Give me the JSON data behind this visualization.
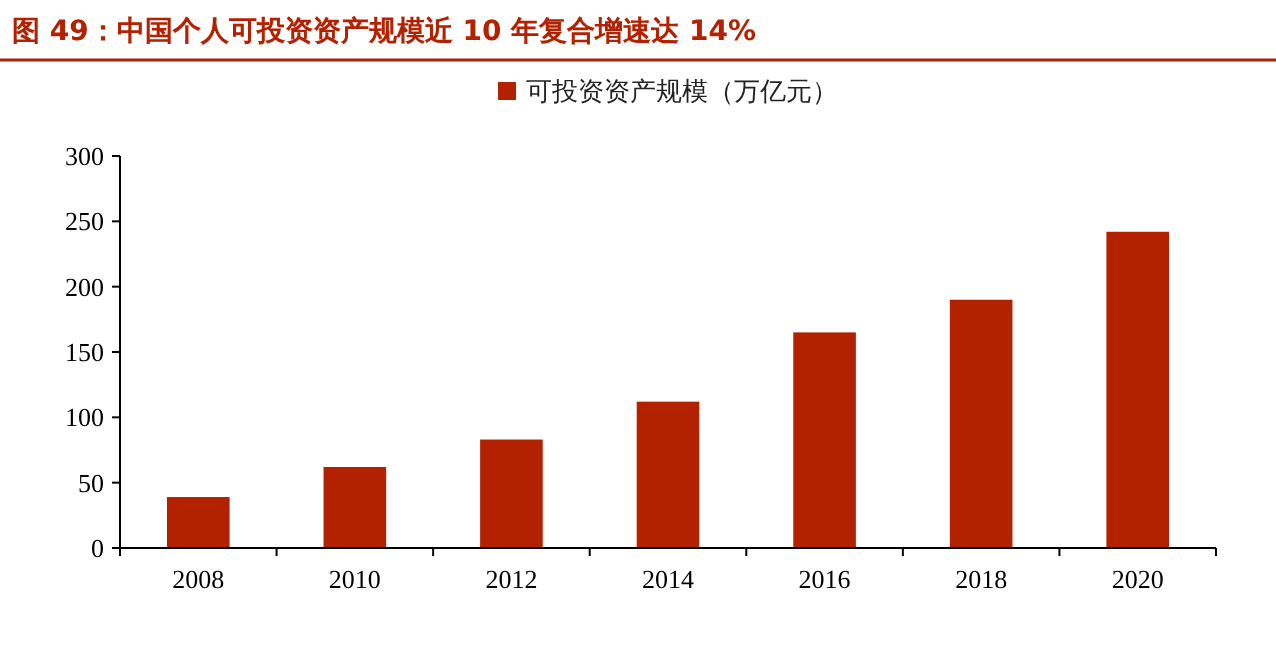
{
  "chart_data": {
    "type": "bar",
    "title": "图 49：中国个人可投资资产规模近 10 年复合增速达 14%",
    "categories": [
      "2008",
      "2010",
      "2012",
      "2014",
      "2016",
      "2018",
      "2020"
    ],
    "series": [
      {
        "name": "可投资资产规模（万亿元）",
        "color": "#b22200",
        "values": [
          39,
          62,
          83,
          112,
          165,
          190,
          242
        ]
      }
    ],
    "ylim": [
      0,
      300
    ],
    "yticks": [
      0,
      50,
      100,
      150,
      200,
      250,
      300
    ],
    "legend": "top",
    "grid": false
  }
}
